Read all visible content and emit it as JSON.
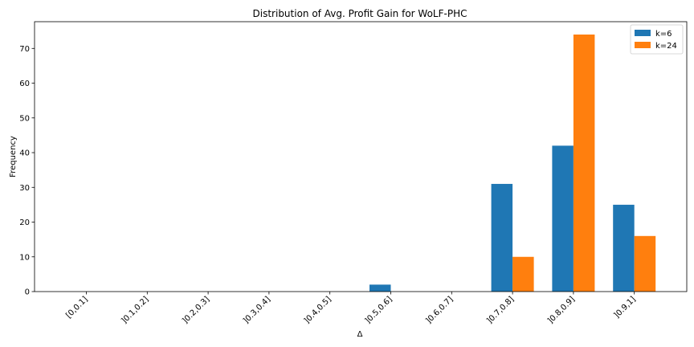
{
  "chart_data": {
    "type": "bar",
    "title": "Distribution of Avg. Profit Gain for WoLF-PHC",
    "xlabel": "Δ",
    "ylabel": "Frequency",
    "categories": [
      "[0,0.1]",
      "]0.1,0.2]",
      "]0.2,0.3]",
      "]0.3,0.4]",
      "]0.4,0.5]",
      "]0.5,0.6]",
      "]0.6,0.7]",
      "]0.7,0.8]",
      "]0.8,0.9]",
      "]0.9,1]"
    ],
    "series": [
      {
        "name": "k=6",
        "color": "#1f77b4",
        "values": [
          0,
          0,
          0,
          0,
          0,
          2,
          0,
          31,
          42,
          25
        ]
      },
      {
        "name": "k=24",
        "color": "#ff7f0e",
        "values": [
          0,
          0,
          0,
          0,
          0,
          0,
          0,
          10,
          74,
          16
        ]
      }
    ],
    "ylim": [
      0,
      77.7
    ],
    "yticks": [
      0,
      10,
      20,
      30,
      40,
      50,
      60,
      70
    ],
    "grid": false,
    "legend": "top-right"
  }
}
